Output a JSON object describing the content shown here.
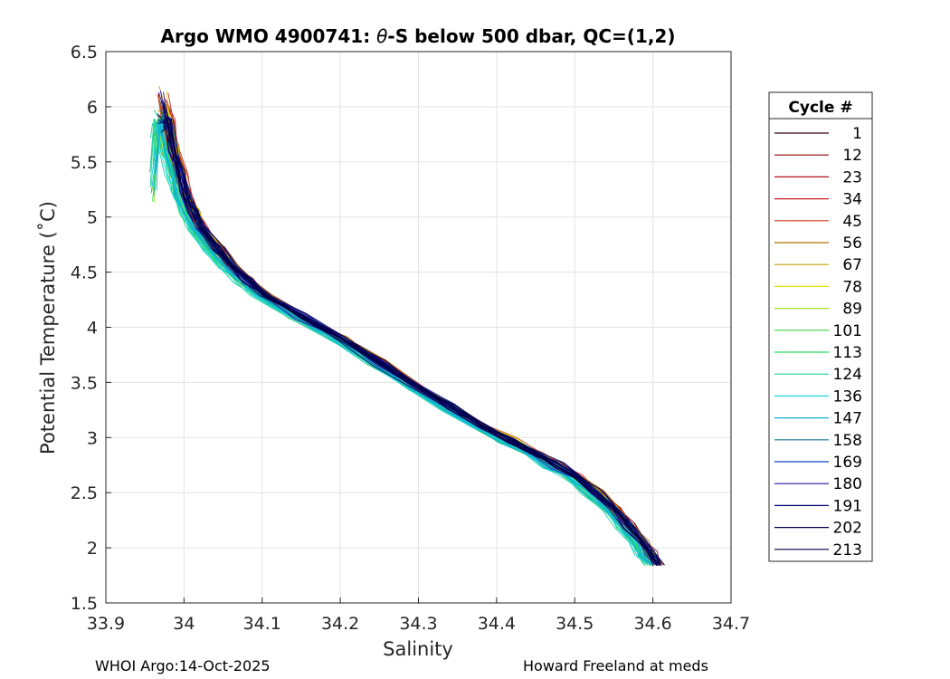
{
  "chart_data": {
    "type": "line",
    "title_prefix": "Argo WMO 4900741: ",
    "title_theta": "θ",
    "title_suffix": "-S below 500 dbar,  QC=(1,2)",
    "xlabel": "Salinity",
    "ylabel": "Potential Temperature (˚C)",
    "xlim": [
      33.9,
      34.7
    ],
    "ylim": [
      1.5,
      6.5
    ],
    "xticks": [
      "33.9",
      "34",
      "34.1",
      "34.2",
      "34.3",
      "34.4",
      "34.5",
      "34.6",
      "34.7"
    ],
    "yticks": [
      "1.5",
      "2",
      "2.5",
      "3",
      "3.5",
      "4",
      "4.5",
      "5",
      "5.5",
      "6",
      "6.5"
    ],
    "grid": true,
    "legend": {
      "title": "Cycle #",
      "placement": "right-outside",
      "entries": [
        {
          "label": "1",
          "color": "#3a0010"
        },
        {
          "label": "12",
          "color": "#8b0000"
        },
        {
          "label": "23",
          "color": "#b5101e"
        },
        {
          "label": "34",
          "color": "#c8202a"
        },
        {
          "label": "45",
          "color": "#c83c20"
        },
        {
          "label": "56",
          "color": "#b07000"
        },
        {
          "label": "67",
          "color": "#c8a000"
        },
        {
          "label": "78",
          "color": "#e0e000"
        },
        {
          "label": "89",
          "color": "#a0e020"
        },
        {
          "label": "101",
          "color": "#40d040"
        },
        {
          "label": "113",
          "color": "#20e060"
        },
        {
          "label": "124",
          "color": "#20d0a0"
        },
        {
          "label": "136",
          "color": "#20d8e0"
        },
        {
          "label": "147",
          "color": "#10b0d0"
        },
        {
          "label": "158",
          "color": "#107890"
        },
        {
          "label": "169",
          "color": "#1040c0"
        },
        {
          "label": "180",
          "color": "#3010a0"
        },
        {
          "label": "191",
          "color": "#000070"
        },
        {
          "label": "202",
          "color": "#000050"
        },
        {
          "label": "213",
          "color": "#000040"
        }
      ]
    },
    "envelope": [
      [
        33.97,
        6.15
      ],
      [
        33.985,
        5.6
      ],
      [
        34.0,
        5.2
      ],
      [
        34.02,
        4.9
      ],
      [
        34.06,
        4.55
      ],
      [
        34.1,
        4.3
      ],
      [
        34.2,
        3.9
      ],
      [
        34.3,
        3.45
      ],
      [
        34.38,
        3.1
      ],
      [
        34.45,
        2.85
      ],
      [
        34.5,
        2.65
      ],
      [
        34.55,
        2.35
      ],
      [
        34.585,
        2.05
      ],
      [
        34.605,
        1.85
      ]
    ],
    "series_note_free": true
  },
  "footer": {
    "left": "WHOI Argo:14-Oct-2025",
    "right": "Howard Freeland at meds"
  }
}
